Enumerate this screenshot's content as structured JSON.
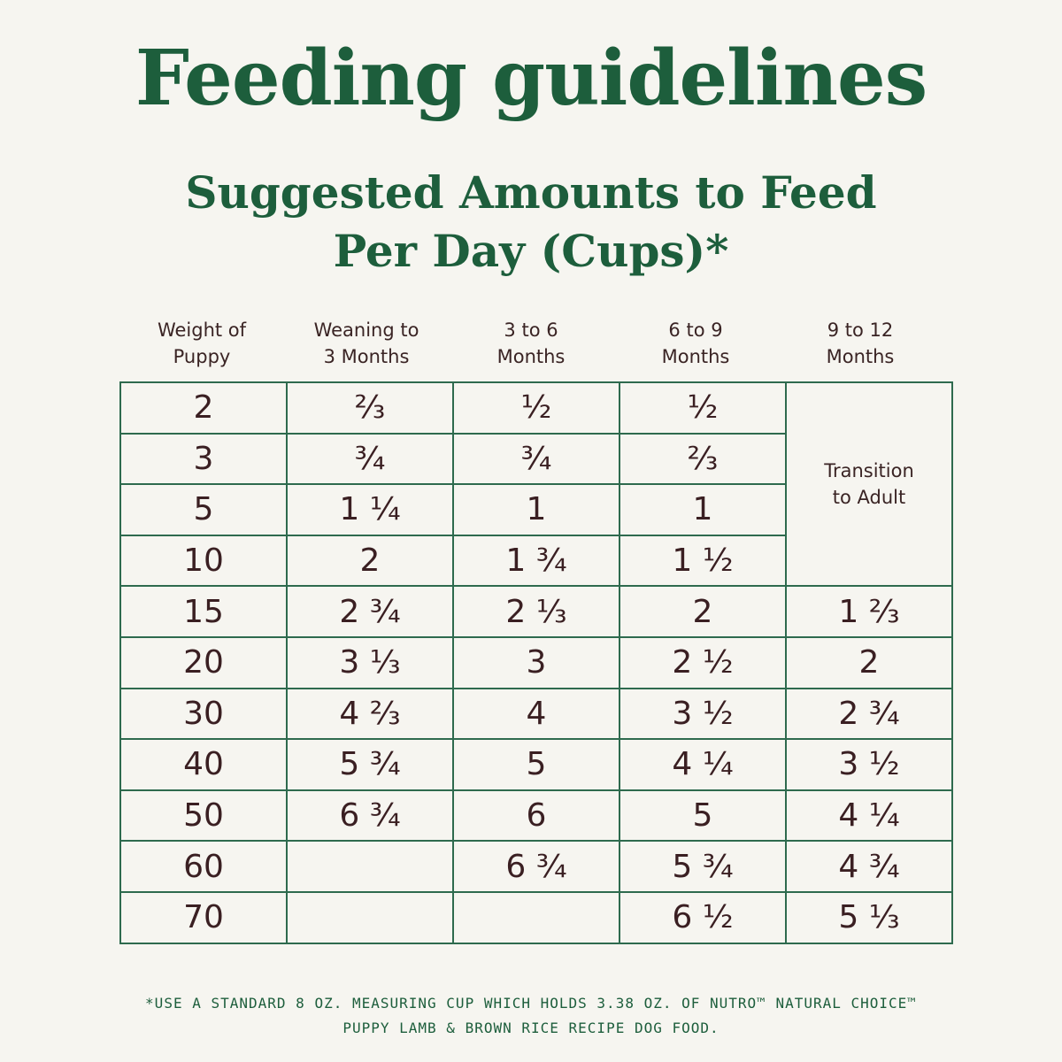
{
  "header": {
    "title": "Feeding guidelines",
    "subtitle": [
      "Suggested Amounts to Feed",
      "Per Day (Cups)*"
    ]
  },
  "table": {
    "columns": [
      [
        "Weight of",
        "Puppy"
      ],
      [
        "Weaning to",
        "3 Months"
      ],
      [
        "3 to 6",
        "Months"
      ],
      [
        "6 to 9",
        "Months"
      ],
      [
        "9 to 12",
        "Months"
      ]
    ],
    "transition": [
      "Transition",
      "to Adult"
    ],
    "rows": [
      [
        "2",
        "⅔",
        "½",
        "½",
        null
      ],
      [
        "3",
        "¾",
        "¾",
        "⅔",
        null
      ],
      [
        "5",
        "1 ¼",
        "1",
        "1",
        null
      ],
      [
        "10",
        "2",
        "1 ¾",
        "1 ½",
        null
      ],
      [
        "15",
        "2 ¾",
        "2 ⅓",
        "2",
        "1 ⅔"
      ],
      [
        "20",
        "3 ⅓",
        "3",
        "2 ½",
        "2"
      ],
      [
        "30",
        "4 ⅔",
        "4",
        "3 ½",
        "2 ¾"
      ],
      [
        "40",
        "5 ¾",
        "5",
        "4 ¼",
        "3 ½"
      ],
      [
        "50",
        "6 ¾",
        "6",
        "5",
        "4 ¼"
      ],
      [
        "60",
        null,
        "6 ¾",
        "5 ¾",
        "4 ¾"
      ],
      [
        "70",
        null,
        null,
        "6 ½",
        "5 ⅓"
      ]
    ]
  },
  "footnote": [
    "*USE A STANDARD 8 OZ. MEASURING CUP WHICH HOLDS 3.38 OZ. OF NUTRO™ NATURAL CHOICE™",
    "PUPPY LAMB & BROWN RICE RECIPE DOG FOOD."
  ]
}
